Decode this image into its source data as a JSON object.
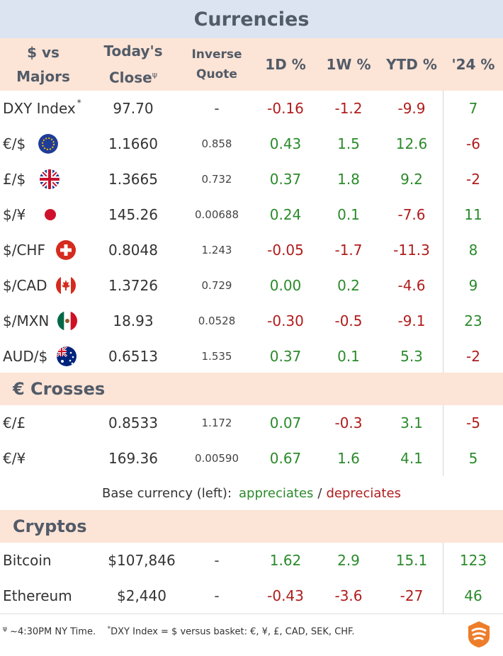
{
  "title": "Currencies",
  "headers": {
    "pair_line1": "$ vs",
    "pair_line2": "Majors",
    "close_line1": "Today's",
    "close_line2": "Close",
    "close_mark": "ψ",
    "inverse_line1": "Inverse",
    "inverse_line2": "Quote",
    "d1": "1D %",
    "w1": "1W %",
    "ytd": "YTD %",
    "y24": "'24 %"
  },
  "majors": [
    {
      "name": "DXY Index",
      "mark": "*",
      "flag": "",
      "close": "97.70",
      "inverse": "-",
      "d1": "-0.16",
      "w1": "-1.2",
      "ytd": "-9.9",
      "y24": "7"
    },
    {
      "name": "€/$",
      "mark": "",
      "flag": "eu-flag-icon",
      "close": "1.1660",
      "inverse": "0.858",
      "d1": "0.43",
      "w1": "1.5",
      "ytd": "12.6",
      "y24": "-6"
    },
    {
      "name": "£/$",
      "mark": "",
      "flag": "uk-flag-icon",
      "close": "1.3665",
      "inverse": "0.732",
      "d1": "0.37",
      "w1": "1.8",
      "ytd": "9.2",
      "y24": "-2"
    },
    {
      "name": "$/¥",
      "mark": "",
      "flag": "japan-flag-icon",
      "close": "145.26",
      "inverse": "0.00688",
      "d1": "0.24",
      "w1": "0.1",
      "ytd": "-7.6",
      "y24": "11"
    },
    {
      "name": "$/CHF",
      "mark": "",
      "flag": "swiss-flag-icon",
      "close": "0.8048",
      "inverse": "1.243",
      "d1": "-0.05",
      "w1": "-1.7",
      "ytd": "-11.3",
      "y24": "8"
    },
    {
      "name": "$/CAD",
      "mark": "",
      "flag": "canada-flag-icon",
      "close": "1.3726",
      "inverse": "0.729",
      "d1": "0.00",
      "w1": "0.2",
      "ytd": "-4.6",
      "y24": "9"
    },
    {
      "name": "$/MXN",
      "mark": "",
      "flag": "mexico-flag-icon",
      "close": "18.93",
      "inverse": "0.0528",
      "d1": "-0.30",
      "w1": "-0.5",
      "ytd": "-9.1",
      "y24": "23"
    },
    {
      "name": "AUD/$",
      "mark": "",
      "flag": "australia-flag-icon",
      "close": "0.6513",
      "inverse": "1.535",
      "d1": "0.37",
      "w1": "0.1",
      "ytd": "5.3",
      "y24": "-2"
    }
  ],
  "crosses_title": "€ Crosses",
  "crosses": [
    {
      "name": "€/£",
      "close": "0.8533",
      "inverse": "1.172",
      "d1": "0.07",
      "w1": "-0.3",
      "ytd": "3.1",
      "y24": "-5"
    },
    {
      "name": "€/¥",
      "close": "169.36",
      "inverse": "0.00590",
      "d1": "0.67",
      "w1": "1.6",
      "ytd": "4.1",
      "y24": "5"
    }
  ],
  "legend": {
    "label": "Base currency (left):",
    "up": "appreciates",
    "sep": "/",
    "down": "depreciates"
  },
  "cryptos_title": "Cryptos",
  "cryptos": [
    {
      "name": "Bitcoin",
      "close": "$107,846",
      "inverse": "-",
      "d1": "1.62",
      "w1": "2.9",
      "ytd": "15.1",
      "y24": "123"
    },
    {
      "name": "Ethereum",
      "close": "$2,440",
      "inverse": "-",
      "d1": "-0.43",
      "w1": "-3.6",
      "ytd": "-27",
      "y24": "46"
    }
  ],
  "footnote": {
    "mark1": "ψ",
    "text1": " ~4:30PM NY Time.",
    "mark2": "*",
    "text2": "DXY Index = $ versus basket: €, ¥, £, CAD, SEK, CHF."
  },
  "colors": {
    "title_bg": "#dce4f1",
    "header_bg": "#fce4d6",
    "positive": "#2b8a2b",
    "negative": "#b01c1c",
    "logo": "#ee7d2a"
  }
}
